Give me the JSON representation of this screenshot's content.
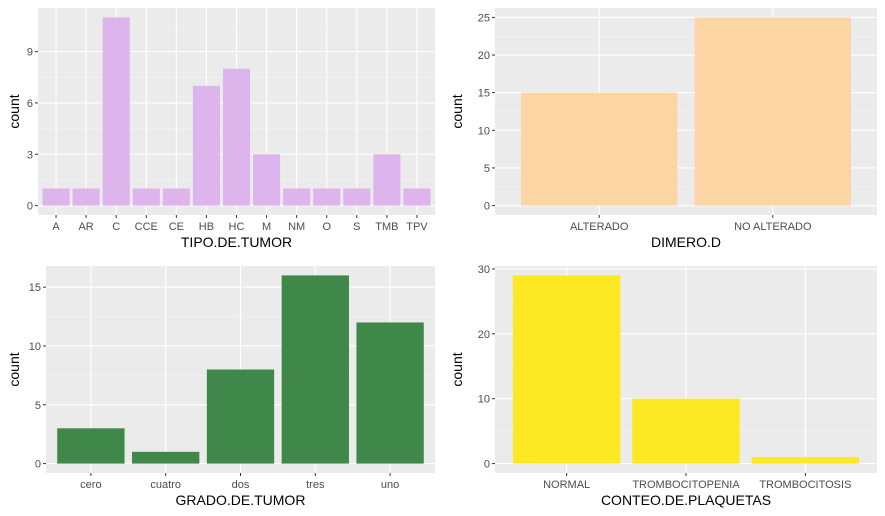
{
  "chart_data": [
    {
      "type": "bar",
      "xlabel": "TIPO.DE.TUMOR",
      "ylabel": "count",
      "categories": [
        "A",
        "AR",
        "C",
        "CCE",
        "CE",
        "HB",
        "HC",
        "M",
        "NM",
        "O",
        "S",
        "TMB",
        "TPV"
      ],
      "values": [
        1,
        1,
        11,
        1,
        1,
        7,
        8,
        3,
        1,
        1,
        1,
        3,
        1
      ],
      "yticks": [
        0,
        3,
        6,
        9
      ],
      "ylim": [
        -0.55,
        11.55
      ],
      "color": "#DDB4EB"
    },
    {
      "type": "bar",
      "xlabel": "DIMERO.D",
      "ylabel": "count",
      "categories": [
        "ALTERADO",
        "NO ALTERADO"
      ],
      "values": [
        15,
        25
      ],
      "yticks": [
        0,
        5,
        10,
        15,
        20,
        25
      ],
      "ylim": [
        -1.25,
        26.25
      ],
      "color": "#FDD4A4"
    },
    {
      "type": "bar",
      "xlabel": "GRADO.DE.TUMOR",
      "ylabel": "count",
      "categories": [
        "cero",
        "cuatro",
        "dos",
        "tres",
        "uno"
      ],
      "values": [
        3,
        1,
        8,
        16,
        12
      ],
      "yticks": [
        0,
        5,
        10,
        15
      ],
      "ylim": [
        -0.8,
        16.8
      ],
      "color": "#40884A"
    },
    {
      "type": "bar",
      "xlabel": "CONTEO.DE.PLAQUETAS",
      "ylabel": "count",
      "categories": [
        "NORMAL",
        "TROMBOCITOPENIA",
        "TROMBOCITOSIS"
      ],
      "values": [
        29,
        10,
        1
      ],
      "yticks": [
        0,
        10,
        20,
        30
      ],
      "ylim": [
        -1.45,
        30.45
      ],
      "color": "#FCE924"
    }
  ]
}
